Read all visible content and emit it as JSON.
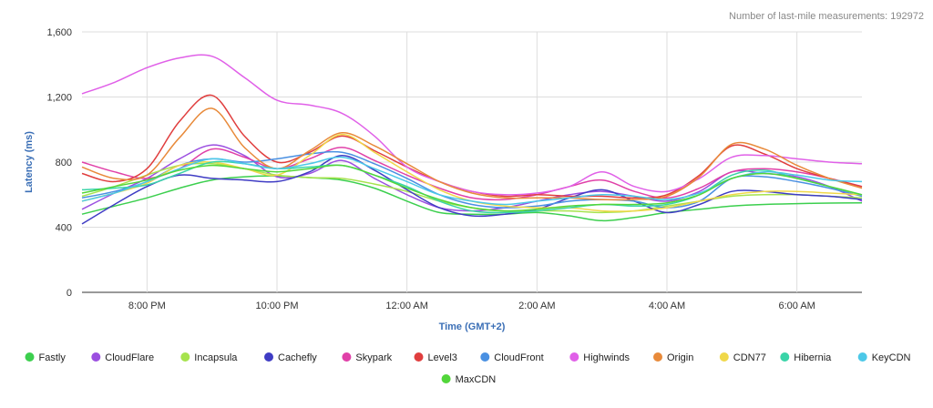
{
  "chart_data": {
    "type": "line",
    "annotation": "Number of last-mile measurements: 192972",
    "xlabel": "Time (GMT+2)",
    "ylabel": "Latency (ms)",
    "x": [
      -1,
      -0.5,
      0,
      0.5,
      1,
      1.5,
      2,
      2.5,
      3,
      3.5,
      4,
      4.5,
      5,
      5.5,
      6,
      6.5,
      7,
      7.5,
      8,
      8.5,
      9,
      9.5,
      10,
      10.5,
      11
    ],
    "x_ticks": [
      {
        "at": 0,
        "label": "8:00 PM"
      },
      {
        "at": 2,
        "label": "10:00 PM"
      },
      {
        "at": 4,
        "label": "12:00 AM"
      },
      {
        "at": 6,
        "label": "2:00 AM"
      },
      {
        "at": 8,
        "label": "4:00 AM"
      },
      {
        "at": 10,
        "label": "6:00 AM"
      }
    ],
    "xlim": [
      -1,
      11
    ],
    "y_ticks": [
      {
        "at": 0,
        "label": "0"
      },
      {
        "at": 400,
        "label": "400"
      },
      {
        "at": 800,
        "label": "800"
      },
      {
        "at": 1200,
        "label": "1,200"
      },
      {
        "at": 1600,
        "label": "1,600"
      }
    ],
    "ylim": [
      0,
      1600
    ],
    "grid": true,
    "legend_position": "bottom",
    "series": [
      {
        "name": "Fastly",
        "color": "#3ccf4e",
        "values": [
          480,
          530,
          580,
          640,
          690,
          710,
          715,
          705,
          690,
          640,
          560,
          490,
          480,
          480,
          490,
          470,
          440,
          460,
          490,
          510,
          530,
          540,
          545,
          548,
          550
        ]
      },
      {
        "name": "CloudFlare",
        "color": "#9b4fe0",
        "values": [
          510,
          610,
          700,
          820,
          905,
          840,
          710,
          730,
          810,
          700,
          600,
          520,
          500,
          520,
          560,
          600,
          620,
          590,
          560,
          620,
          740,
          730,
          710,
          650,
          560
        ]
      },
      {
        "name": "Incapsula",
        "color": "#a6e34d",
        "values": [
          590,
          650,
          720,
          780,
          790,
          760,
          720,
          705,
          700,
          665,
          620,
          560,
          520,
          500,
          500,
          500,
          490,
          500,
          530,
          560,
          590,
          600,
          600,
          590,
          580
        ]
      },
      {
        "name": "Cachefly",
        "color": "#3f3cc4",
        "values": [
          420,
          540,
          650,
          720,
          700,
          690,
          680,
          740,
          840,
          750,
          630,
          520,
          470,
          480,
          510,
          580,
          630,
          560,
          490,
          540,
          620,
          620,
          600,
          590,
          570
        ]
      },
      {
        "name": "Skypark",
        "color": "#e040a8",
        "values": [
          800,
          740,
          700,
          760,
          880,
          830,
          760,
          820,
          890,
          810,
          720,
          640,
          580,
          570,
          600,
          650,
          690,
          620,
          580,
          640,
          740,
          760,
          740,
          700,
          650
        ]
      },
      {
        "name": "Level3",
        "color": "#e03e3e",
        "values": [
          730,
          680,
          760,
          1050,
          1210,
          960,
          800,
          860,
          960,
          870,
          770,
          680,
          620,
          590,
          600,
          590,
          590,
          580,
          600,
          720,
          900,
          850,
          760,
          700,
          650
        ]
      },
      {
        "name": "CloudFront",
        "color": "#4a90e2",
        "values": [
          580,
          620,
          680,
          780,
          820,
          800,
          820,
          850,
          860,
          790,
          700,
          600,
          540,
          520,
          530,
          560,
          570,
          560,
          520,
          560,
          700,
          710,
          680,
          640,
          590
        ]
      },
      {
        "name": "Highwinds",
        "color": "#e060e8",
        "values": [
          1220,
          1290,
          1380,
          1440,
          1450,
          1320,
          1180,
          1150,
          1100,
          960,
          770,
          680,
          620,
          600,
          610,
          650,
          740,
          650,
          620,
          700,
          830,
          840,
          820,
          800,
          790
        ]
      },
      {
        "name": "Origin",
        "color": "#e88a3a",
        "values": [
          770,
          700,
          720,
          950,
          1130,
          890,
          760,
          870,
          980,
          900,
          790,
          680,
          610,
          580,
          580,
          580,
          570,
          570,
          590,
          710,
          910,
          880,
          780,
          700,
          640
        ]
      },
      {
        "name": "CDN77",
        "color": "#f0d84a",
        "values": [
          560,
          610,
          670,
          780,
          800,
          760,
          720,
          840,
          970,
          860,
          740,
          630,
          560,
          530,
          520,
          520,
          500,
          500,
          520,
          560,
          600,
          620,
          620,
          610,
          600
        ]
      },
      {
        "name": "Hibernia",
        "color": "#3ad4a8",
        "values": [
          630,
          640,
          660,
          730,
          800,
          790,
          760,
          770,
          780,
          720,
          650,
          560,
          500,
          490,
          500,
          520,
          540,
          530,
          540,
          600,
          720,
          750,
          700,
          650,
          600
        ]
      },
      {
        "name": "KeyCDN",
        "color": "#4cc8e8",
        "values": [
          560,
          610,
          680,
          760,
          820,
          790,
          760,
          790,
          830,
          760,
          680,
          600,
          560,
          540,
          560,
          580,
          600,
          590,
          570,
          610,
          700,
          740,
          720,
          690,
          680
        ]
      },
      {
        "name": "MaxCDN",
        "color": "#52d63a",
        "values": [
          610,
          650,
          690,
          750,
          780,
          760,
          740,
          760,
          780,
          720,
          640,
          570,
          520,
          500,
          510,
          530,
          540,
          540,
          550,
          600,
          700,
          730,
          700,
          650,
          600
        ]
      }
    ]
  }
}
